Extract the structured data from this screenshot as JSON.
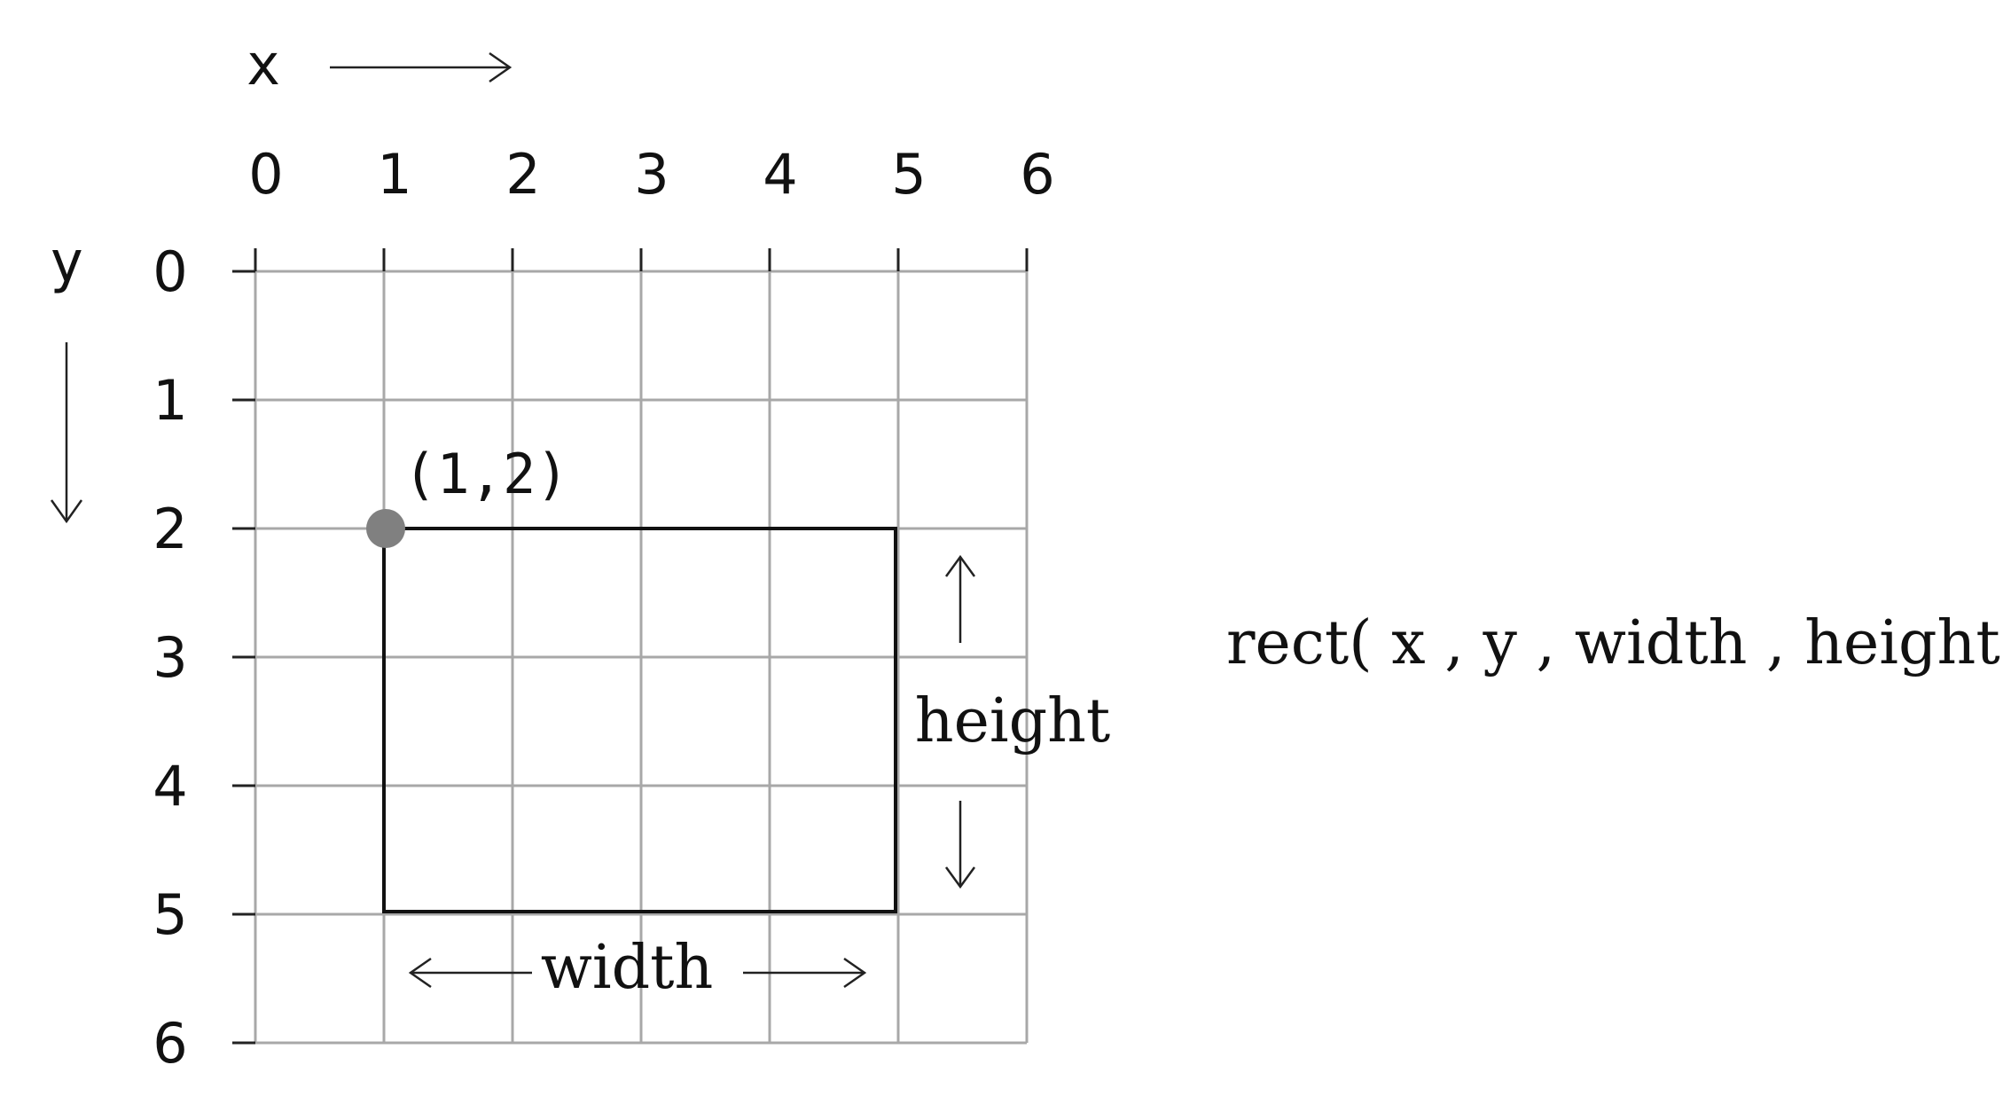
{
  "axes": {
    "x_letter": "x",
    "y_letter": "y",
    "x_ticks": [
      "0",
      "1",
      "2",
      "3",
      "4",
      "5",
      "6"
    ],
    "y_ticks": [
      "0",
      "1",
      "2",
      "3",
      "4",
      "5",
      "6"
    ]
  },
  "rectangle": {
    "x": 1,
    "y": 2,
    "width": 4,
    "height": 3
  },
  "labels": {
    "origin_point": "(1,2)",
    "width": "width",
    "height": "height",
    "code": "rect( x , y , width , height ) ;"
  },
  "colors": {
    "grid": "#a8a8a8",
    "outline": "#111111",
    "point": "#808080"
  }
}
